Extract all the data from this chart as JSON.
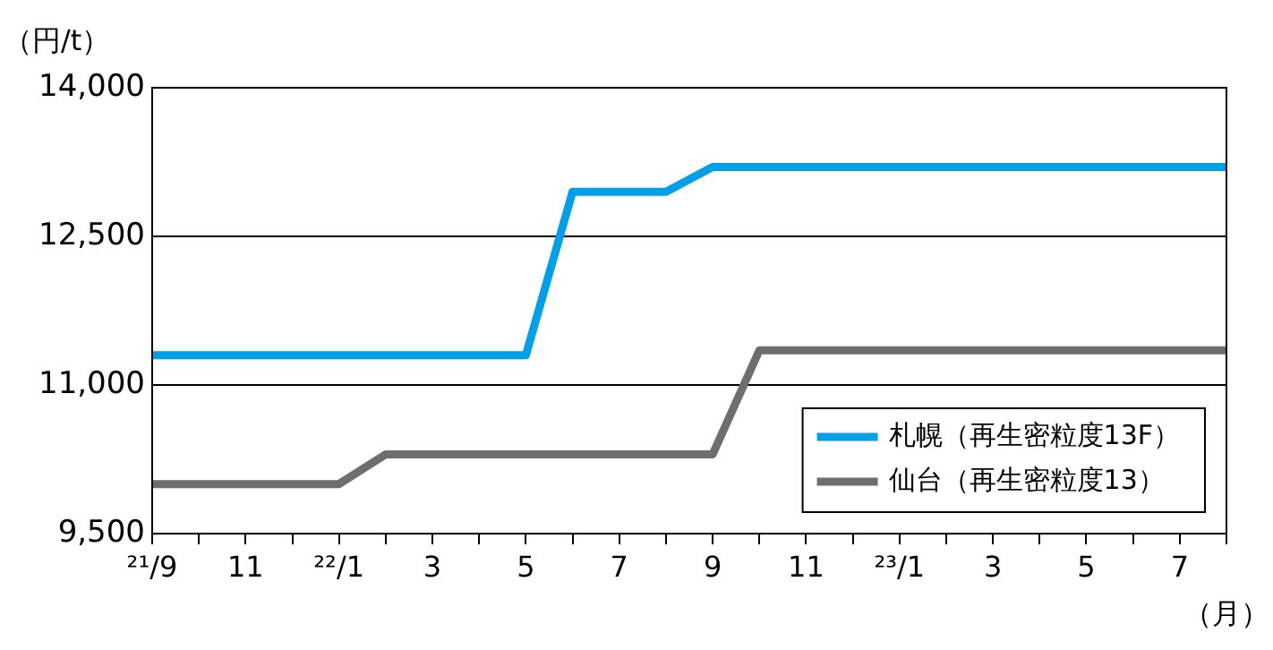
{
  "chart_data": {
    "type": "line",
    "ylabel": "（円/t）",
    "xlabel": "（月）",
    "categories": [
      "²¹/9",
      null,
      "11",
      null,
      "²²/1",
      null,
      "3",
      null,
      "5",
      null,
      "7",
      null,
      "9",
      null,
      "11",
      null,
      "²³/1",
      null,
      "3",
      null,
      "5",
      null,
      "7",
      null
    ],
    "series": [
      {
        "name": "札幌（再生密粒度13F）",
        "color": "#00a0e9",
        "values": [
          11300,
          11300,
          11300,
          11300,
          11300,
          11300,
          11300,
          11300,
          11300,
          12950,
          12950,
          12950,
          13200,
          13200,
          13200,
          13200,
          13200,
          13200,
          13200,
          13200,
          13200,
          13200,
          13200,
          13200
        ]
      },
      {
        "name": "仙台（再生密粒度13）",
        "color": "#6e6e6e",
        "values": [
          10000,
          10000,
          10000,
          10000,
          10000,
          10300,
          10300,
          10300,
          10300,
          10300,
          10300,
          10300,
          10300,
          11350,
          11350,
          11350,
          11350,
          11350,
          11350,
          11350,
          11350,
          11350,
          11350,
          11350
        ]
      }
    ],
    "ylim": [
      9500,
      14000
    ],
    "yticks": [
      {
        "value": 9500,
        "label": "9,500"
      },
      {
        "value": 11000,
        "label": "11,000"
      },
      {
        "value": 12500,
        "label": "12,500"
      },
      {
        "value": 14000,
        "label": "14,000"
      }
    ],
    "grid": "y",
    "legend": "bottom right",
    "marker": "none",
    "line_style": "solid"
  }
}
